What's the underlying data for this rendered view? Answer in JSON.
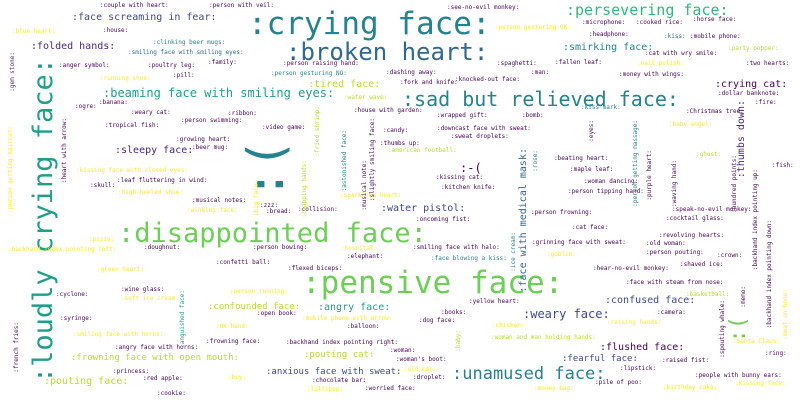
{
  "palette": {
    "dark_purple": "#440154",
    "purple": "#482878",
    "indigo": "#3e4989",
    "blue": "#31688e",
    "teal": "#26828e",
    "sea_green": "#1f9e89",
    "green": "#35b779",
    "light_green": "#6ece58",
    "lime": "#b5de2b",
    "yellow": "#fde725"
  },
  "words": {
    "w1": ":crying face:",
    "w2": ":broken heart:",
    "w3": ":persevering face:",
    "w4": ":loudly crying face:",
    "w5": ":disappointed face:",
    "w6": ":pensive face:",
    "w7": ":sad but relieved face:",
    "w8": ":(",
    "w9": ":unamused face:",
    "w10": ":face screaming in fear:",
    "w11": ":folded hands:",
    "w12": ":beaming face with smiling eyes:",
    "w13": ":weary face:",
    "w14": ":confused face:",
    "w15": ":flushed face:",
    "w16": ":crying cat:",
    "w17": ":thumbs down:",
    "w18": ":pouting face:",
    "w19": ":angry face:",
    "w20": ":tired face:",
    "w21": ":sleepy face:",
    "w22": ":water pistol:",
    "w23": ":smirking face:",
    "w24": ":face with medical mask:",
    "w25": ":anxious face with sweat:",
    "w26": ":confounded face:",
    "w27": ":fearful face:",
    "w28": ":(",
    "w29": ":pouting cat:",
    "w30": ":frowning face with open mouth:",
    "w31": ":-(",
    "w32": ":couple with heart:",
    "w33": ":person with veil:",
    "w34": ":see-no-evil monkey:",
    "w35": ":person gesturing OK:",
    "w36": ":blue heart:",
    "w37": ":house:",
    "w38": ":clinking beer mugs:",
    "w39": ":smiling face with smiling eyes:",
    "w40": ":microphone:",
    "w41": ":cooked rice:",
    "w42": ":horse face:",
    "w43": ":headphone:",
    "w44": ":kiss:",
    "w45": ":mobile phone:",
    "w46": ":cat with wry smile:",
    "w47": ":party popper:",
    "w48": ":gem stone:",
    "w49": ":anger symbol:",
    "w50": ":poultry leg:",
    "w51": ":family:",
    "w52": ":person raising hand:",
    "w53": ":spaghetti:",
    "w54": ":fallen leaf:",
    "w55": ":nail polish:",
    "w56": ":two hearts:",
    "w57": ":running shoe:",
    "w58": ":pill:",
    "w59": ":person gesturing NO:",
    "w60": ":dashing away:",
    "w61": ":knocked-out face:",
    "w62": ":man:",
    "w63": ":money with wings:",
    "w64": ":fork and knife:",
    "w65": ":banana:",
    "w66": ":water wave:",
    "w67": ":dollar banknote:",
    "w68": ":ogre:",
    "w69": ":weary cat:",
    "w70": ":ribbon:",
    "w71": ":house with garden:",
    "w72": ":wrapped gift:",
    "w73": ":bomb:",
    "w74": ":kiss mark:",
    "w75": ":Christmas tree:",
    "w76": ":fire:",
    "w77": ":tropical fish:",
    "w78": ":person swimming:",
    "w79": ":video game:",
    "w80": ":candy:",
    "w81": ":downcast face with sweat:",
    "w82": ":baby angel:",
    "w83": ":growing heart:",
    "w84": ":beer mug:",
    "w85": ":thumbs up:",
    "w86": ":sweat droplets:",
    "w87": ":american football:",
    "w88": ":ghost:",
    "w89": ":beating heart:",
    "w90": ":maple leaf:",
    "w91": ":kissing face with closed eyes:",
    "w92": ":kissing cat:",
    "w93": ":woman dancing:",
    "w94": ":leaf fluttering in wind:",
    "w95": ":skull:",
    "w96": ":high-heeled shoe:",
    "w97": ":kitchen knife:",
    "w98": ":person tipping hand:",
    "w99": ":musical notes:",
    "w100": ":winking face:",
    "w101": ":bread:",
    "w102": ":zzz:",
    "w103": ":collision:",
    "w104": ":sparkling heart:",
    "w105": ":fish:",
    "w106": ":speak-no-evil monkey:",
    "w107": ":cocktail glass:",
    "w108": ":oncoming fist:",
    "w109": ":person frowning:",
    "w110": ":cat face:",
    "w111": ":revolving hearts:",
    "w112": ":pizza:",
    "w113": ":doughnut:",
    "w114": ":person bowing:",
    "w115": ":smiling face with halo:",
    "w116": ":grinning face with sweat:",
    "w117": ":old woman:",
    "w118": ":person pouting:",
    "w119": ":crown:",
    "w120": ":backhand index pointing left:",
    "w121": ":hospital:",
    "w122": ":elephant:",
    "w123": ":face blowing a kiss:",
    "w124": ":goblin:",
    "w125": ":green heart:",
    "w126": ":confetti ball:",
    "w127": ":shaved ice:",
    "w128": ":hear-no-evil monkey:",
    "w129": ":cyclone:",
    "w130": ":wine glass:",
    "w131": ":soft ice cream:",
    "w132": ":person running:",
    "w133": ":flexed biceps:",
    "w134": ":face with steam from nose:",
    "w135": ":basketball:",
    "w136": ":yellow heart:",
    "w137": ":syringe:",
    "w138": ":open book:",
    "w139": ":mobile phone with arrow:",
    "w140": ":books:",
    "w141": ":dog face:",
    "w142": ":camera:",
    "w143": ":OK hand:",
    "w144": ":balloon:",
    "w145": ":chicken:",
    "w146": ":raising hands:",
    "w147": ":smiling face with horns:",
    "w148": ":woman and man holding hands:",
    "w149": ":angry face with horns:",
    "w150": ":frowning face:",
    "w151": ":backhand index pointing right:",
    "w152": ":Santa Claus:",
    "w153": ":woman:",
    "w154": ":woman's boot:",
    "w155": ":ring:",
    "w156": ":raised fist:",
    "w157": ":princess:",
    "w158": ":red apple:",
    "w159": ":boy:",
    "w160": ":old man:",
    "w161": ":droplet:",
    "w162": ":lipstick:",
    "w163": ":chocolate bar:",
    "w164": ":people with bunny ears:",
    "w165": ":kissing face:",
    "w166": ":cookie:",
    "w167": ":lollipop:",
    "w168": ":worried face:",
    "w169": ":money bag:",
    "w170": ":pile of poo:",
    "w171": ":birthday cake:",
    "w172": ":person getting haircut:",
    "w173": ":heart with arrow:",
    "w174": ":backhand index pointing up:",
    "w175": ":person getting massage:",
    "w176": ":purple heart:",
    "w177": ":waving hand:",
    "w178": ":hundred points:",
    "w179": ":astonished face:",
    "w180": ":fried shrimp:",
    "w181": ":musical note:",
    "w182": ":slightly smiling face:",
    "w183": ":clapping hands:",
    "w184": ":rose:",
    "w185": ":eyes:",
    "w186": ":baby:",
    "w187": ":anguished face:",
    "w188": ":big face:",
    "w189": ":ice cream:",
    "w190": ":spouting whale:",
    "w191": ":memo:",
    "w192": ":meat on bone:",
    "w193": ":french fries:",
    "w194": ":backhand index pointing down:"
  }
}
